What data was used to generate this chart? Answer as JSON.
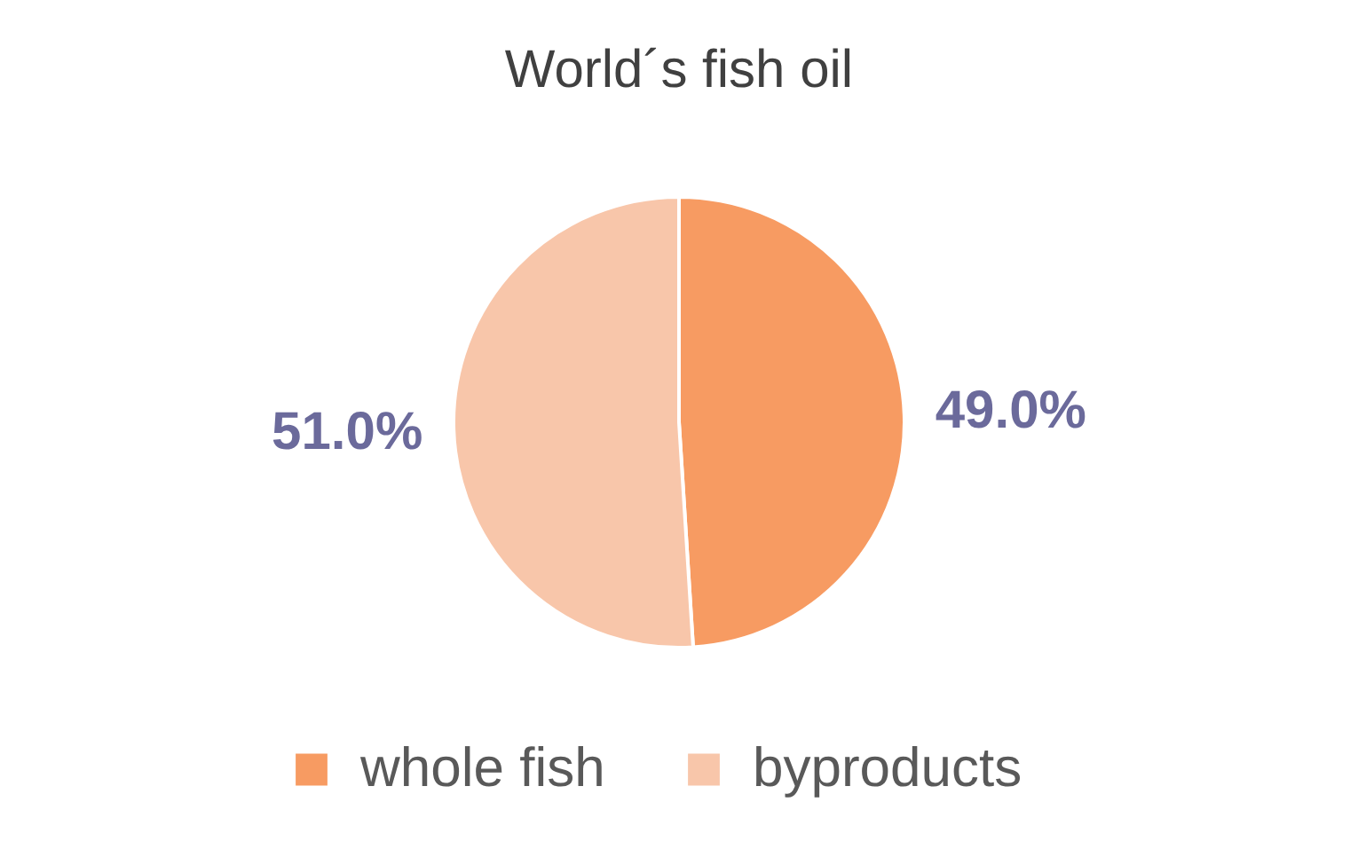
{
  "chart_data": {
    "type": "pie",
    "title": "World´s fish oil",
    "categories": [
      "whole fish",
      "byproducts"
    ],
    "values": [
      49.0,
      51.0
    ],
    "colors": [
      "#f79b62",
      "#f8c6aa"
    ],
    "value_labels": [
      "49.0%",
      "51.0%"
    ],
    "legend": "bottom"
  }
}
